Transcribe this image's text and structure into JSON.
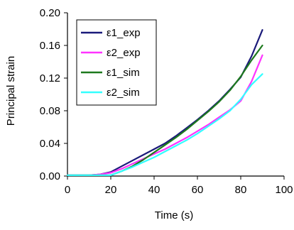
{
  "chart_data": {
    "type": "line",
    "xlabel": "Time (s)",
    "ylabel": "Principal strain",
    "xlim": [
      0,
      100
    ],
    "ylim": [
      0,
      0.2
    ],
    "xticks": [
      "0",
      "20",
      "40",
      "60",
      "80",
      "100"
    ],
    "yticks": [
      "0.00",
      "0.04",
      "0.08",
      "0.12",
      "0.16",
      "0.20"
    ],
    "legend_position": "top-left",
    "grid": false,
    "series": [
      {
        "name": "ε1_exp",
        "color": "#1a1a7a",
        "x": [
          0,
          10,
          15,
          20,
          25,
          30,
          35,
          40,
          45,
          50,
          55,
          60,
          65,
          70,
          75,
          80,
          85,
          90
        ],
        "y": [
          0.001,
          0.001,
          0.002,
          0.005,
          0.012,
          0.019,
          0.026,
          0.033,
          0.04,
          0.049,
          0.059,
          0.069,
          0.08,
          0.092,
          0.106,
          0.121,
          0.147,
          0.179
        ]
      },
      {
        "name": "ε2_exp",
        "color": "#ff33ff",
        "x": [
          0,
          10,
          15,
          20,
          25,
          30,
          35,
          40,
          45,
          50,
          55,
          60,
          65,
          70,
          75,
          80,
          85,
          90
        ],
        "y": [
          0.001,
          0.001,
          0.002,
          0.004,
          0.009,
          0.015,
          0.021,
          0.027,
          0.033,
          0.04,
          0.047,
          0.055,
          0.063,
          0.072,
          0.081,
          0.092,
          0.116,
          0.148
        ]
      },
      {
        "name": "ε1_sim",
        "color": "#1e7a1e",
        "x": [
          0,
          10,
          20,
          25,
          30,
          35,
          40,
          45,
          50,
          55,
          60,
          65,
          70,
          75,
          80,
          85,
          90
        ],
        "y": [
          0.001,
          0.001,
          0.001,
          0.006,
          0.012,
          0.02,
          0.029,
          0.038,
          0.047,
          0.057,
          0.068,
          0.079,
          0.091,
          0.105,
          0.122,
          0.142,
          0.16
        ]
      },
      {
        "name": "ε2_sim",
        "color": "#33ffff",
        "x": [
          0,
          10,
          20,
          25,
          30,
          35,
          40,
          45,
          50,
          55,
          60,
          65,
          70,
          75,
          80,
          85,
          90
        ],
        "y": [
          0.001,
          0.001,
          0.001,
          0.006,
          0.011,
          0.017,
          0.023,
          0.03,
          0.037,
          0.044,
          0.052,
          0.061,
          0.07,
          0.08,
          0.094,
          0.112,
          0.125
        ]
      }
    ]
  }
}
